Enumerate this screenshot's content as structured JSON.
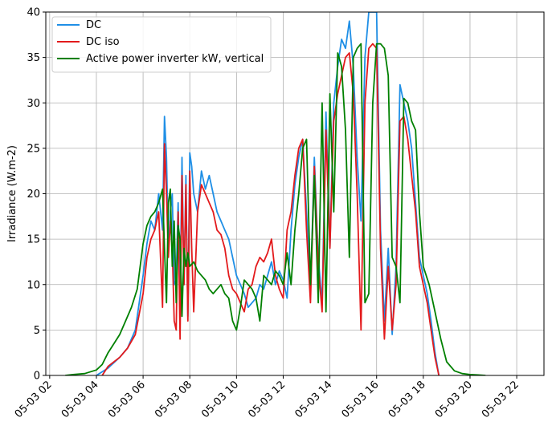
{
  "chart_data": {
    "type": "line",
    "title": "",
    "xlabel": "",
    "ylabel": "Irradiance (W.m-2)",
    "ylim": [
      0,
      40
    ],
    "xlim": [
      "05-03 01:50",
      "05-03 23:10"
    ],
    "grid": true,
    "legend_position": "top-left",
    "xaxis_type": "datetime",
    "x_ticks": [
      "05-03 02",
      "05-03 04",
      "05-03 06",
      "05-03 08",
      "05-03 10",
      "05-03 12",
      "05-03 14",
      "05-03 16",
      "05-03 18",
      "05-03 20",
      "05-03 22"
    ],
    "y_ticks": [
      0,
      5,
      10,
      15,
      20,
      25,
      30,
      35,
      40
    ],
    "series": [
      {
        "name": "DC",
        "color": "#1f8fe6",
        "x": [
          "05-03 04:00",
          "05-03 04:30",
          "05-03 05:00",
          "05-03 05:20",
          "05-03 05:40",
          "05-03 06:00",
          "05-03 06:10",
          "05-03 06:20",
          "05-03 06:30",
          "05-03 06:40",
          "05-03 06:50",
          "05-03 06:55",
          "05-03 07:00",
          "05-03 07:05",
          "05-03 07:10",
          "05-03 07:15",
          "05-03 07:20",
          "05-03 07:25",
          "05-03 07:30",
          "05-03 07:35",
          "05-03 07:40",
          "05-03 07:45",
          "05-03 07:50",
          "05-03 07:55",
          "05-03 08:00",
          "05-03 08:05",
          "05-03 08:10",
          "05-03 08:20",
          "05-03 08:30",
          "05-03 08:40",
          "05-03 08:50",
          "05-03 09:00",
          "05-03 09:10",
          "05-03 09:20",
          "05-03 09:30",
          "05-03 09:40",
          "05-03 09:50",
          "05-03 10:00",
          "05-03 10:10",
          "05-03 10:20",
          "05-03 10:30",
          "05-03 10:40",
          "05-03 10:50",
          "05-03 11:00",
          "05-03 11:10",
          "05-03 11:20",
          "05-03 11:30",
          "05-03 11:40",
          "05-03 11:50",
          "05-03 12:00",
          "05-03 12:10",
          "05-03 12:20",
          "05-03 12:30",
          "05-03 12:40",
          "05-03 12:50",
          "05-03 13:00",
          "05-03 13:10",
          "05-03 13:20",
          "05-03 13:30",
          "05-03 13:40",
          "05-03 13:50",
          "05-03 14:00",
          "05-03 14:10",
          "05-03 14:20",
          "05-03 14:30",
          "05-03 14:40",
          "05-03 14:50",
          "05-03 15:00",
          "05-03 15:10",
          "05-03 15:20",
          "05-03 15:30",
          "05-03 15:40",
          "05-03 15:50",
          "05-03 16:00",
          "05-03 16:10",
          "05-03 16:20",
          "05-03 16:30",
          "05-03 16:40",
          "05-03 16:50",
          "05-03 17:00",
          "05-03 17:10",
          "05-03 17:20",
          "05-03 17:30",
          "05-03 17:40",
          "05-03 17:50",
          "05-03 18:00",
          "05-03 18:10",
          "05-03 18:20",
          "05-03 18:30",
          "05-03 18:40"
        ],
        "y": [
          0,
          0.8,
          2.0,
          3.0,
          5.0,
          11.0,
          14.5,
          17.0,
          16.0,
          20.0,
          16.0,
          28.5,
          24.0,
          14.0,
          18.0,
          20.0,
          10.0,
          10.5,
          19.0,
          8.0,
          24.0,
          10.0,
          22.0,
          6.5,
          24.5,
          23.0,
          20.0,
          18.0,
          22.5,
          20.5,
          22.0,
          20.0,
          18.0,
          17.0,
          16.0,
          15.0,
          13.0,
          11.0,
          10.0,
          9.0,
          7.5,
          8.0,
          8.5,
          10.0,
          9.5,
          11.0,
          12.5,
          10.0,
          11.5,
          10.5,
          8.5,
          16.0,
          21.0,
          24.0,
          26.0,
          18.0,
          9.0,
          24.0,
          13.0,
          8.0,
          29.0,
          14.0,
          30.0,
          34.0,
          37.0,
          36.0,
          39.0,
          34.0,
          24.0,
          17.0,
          35.0,
          40.0,
          40.0,
          40.0,
          16.0,
          6.0,
          14.0,
          4.5,
          12.0,
          32.0,
          30.0,
          28.0,
          25.0,
          19.0,
          13.0,
          11.0,
          9.0,
          6.0,
          2.5,
          0
        ]
      },
      {
        "name": "DC iso",
        "color": "#e31a1c",
        "x": [
          "05-03 04:15",
          "05-03 04:30",
          "05-03 05:00",
          "05-03 05:20",
          "05-03 05:40",
          "05-03 06:00",
          "05-03 06:10",
          "05-03 06:20",
          "05-03 06:30",
          "05-03 06:40",
          "05-03 06:50",
          "05-03 06:55",
          "05-03 07:00",
          "05-03 07:05",
          "05-03 07:10",
          "05-03 07:15",
          "05-03 07:20",
          "05-03 07:25",
          "05-03 07:30",
          "05-03 07:35",
          "05-03 07:40",
          "05-03 07:45",
          "05-03 07:50",
          "05-03 07:55",
          "05-03 08:00",
          "05-03 08:05",
          "05-03 08:10",
          "05-03 08:20",
          "05-03 08:30",
          "05-03 08:40",
          "05-03 08:50",
          "05-03 09:00",
          "05-03 09:10",
          "05-03 09:20",
          "05-03 09:30",
          "05-03 09:40",
          "05-03 09:50",
          "05-03 10:00",
          "05-03 10:10",
          "05-03 10:20",
          "05-03 10:30",
          "05-03 10:40",
          "05-03 10:50",
          "05-03 11:00",
          "05-03 11:10",
          "05-03 11:20",
          "05-03 11:30",
          "05-03 11:40",
          "05-03 11:50",
          "05-03 12:00",
          "05-03 12:10",
          "05-03 12:20",
          "05-03 12:30",
          "05-03 12:40",
          "05-03 12:50",
          "05-03 13:00",
          "05-03 13:10",
          "05-03 13:20",
          "05-03 13:30",
          "05-03 13:40",
          "05-03 13:50",
          "05-03 14:00",
          "05-03 14:10",
          "05-03 14:20",
          "05-03 14:30",
          "05-03 14:40",
          "05-03 14:50",
          "05-03 15:00",
          "05-03 15:10",
          "05-03 15:20",
          "05-03 15:30",
          "05-03 15:40",
          "05-03 15:50",
          "05-03 16:00",
          "05-03 16:10",
          "05-03 16:20",
          "05-03 16:30",
          "05-03 16:40",
          "05-03 16:50",
          "05-03 17:00",
          "05-03 17:10",
          "05-03 17:20",
          "05-03 17:30",
          "05-03 17:40",
          "05-03 17:50",
          "05-03 18:00",
          "05-03 18:10",
          "05-03 18:20",
          "05-03 18:30",
          "05-03 18:40"
        ],
        "y": [
          0,
          1.0,
          2.0,
          3.0,
          4.5,
          9.0,
          13.0,
          15.0,
          16.0,
          18.0,
          7.5,
          25.5,
          20.0,
          13.0,
          17.0,
          14.0,
          6.0,
          5.0,
          18.0,
          4.0,
          22.0,
          10.0,
          21.0,
          6.0,
          22.5,
          14.0,
          7.0,
          18.0,
          21.0,
          20.0,
          19.0,
          18.0,
          16.0,
          15.5,
          14.0,
          11.0,
          9.5,
          9.0,
          8.0,
          7.0,
          9.5,
          10.0,
          12.0,
          13.0,
          12.5,
          13.5,
          15.0,
          11.0,
          9.5,
          8.5,
          16.0,
          18.0,
          22.0,
          25.0,
          26.0,
          16.0,
          8.0,
          23.0,
          12.0,
          7.0,
          27.0,
          14.0,
          28.0,
          31.0,
          33.0,
          35.0,
          35.5,
          31.0,
          20.0,
          5.0,
          30.0,
          36.0,
          36.5,
          36.0,
          14.0,
          4.0,
          12.0,
          5.0,
          10.0,
          28.0,
          28.5,
          26.0,
          22.0,
          18.0,
          12.0,
          10.0,
          8.0,
          5.0,
          2.0,
          0
        ]
      },
      {
        "name": "Active power inverter kW, vertical",
        "color": "#008000",
        "x": [
          "05-03 02:40",
          "05-03 03:00",
          "05-03 03:30",
          "05-03 04:00",
          "05-03 04:15",
          "05-03 04:30",
          "05-03 04:45",
          "05-03 05:00",
          "05-03 05:15",
          "05-03 05:30",
          "05-03 05:45",
          "05-03 06:00",
          "05-03 06:10",
          "05-03 06:20",
          "05-03 06:30",
          "05-03 06:40",
          "05-03 06:50",
          "05-03 06:55",
          "05-03 07:00",
          "05-03 07:05",
          "05-03 07:10",
          "05-03 07:15",
          "05-03 07:20",
          "05-03 07:25",
          "05-03 07:30",
          "05-03 07:35",
          "05-03 07:40",
          "05-03 07:45",
          "05-03 07:50",
          "05-03 07:55",
          "05-03 08:00",
          "05-03 08:10",
          "05-03 08:20",
          "05-03 08:30",
          "05-03 08:40",
          "05-03 08:50",
          "05-03 09:00",
          "05-03 09:10",
          "05-03 09:20",
          "05-03 09:30",
          "05-03 09:40",
          "05-03 09:50",
          "05-03 10:00",
          "05-03 10:10",
          "05-03 10:20",
          "05-03 10:30",
          "05-03 10:40",
          "05-03 10:50",
          "05-03 11:00",
          "05-03 11:10",
          "05-03 11:20",
          "05-03 11:30",
          "05-03 11:40",
          "05-03 11:50",
          "05-03 12:00",
          "05-03 12:10",
          "05-03 12:20",
          "05-03 12:30",
          "05-03 12:40",
          "05-03 12:50",
          "05-03 13:00",
          "05-03 13:10",
          "05-03 13:20",
          "05-03 13:30",
          "05-03 13:40",
          "05-03 13:50",
          "05-03 14:00",
          "05-03 14:10",
          "05-03 14:20",
          "05-03 14:30",
          "05-03 14:40",
          "05-03 14:50",
          "05-03 15:00",
          "05-03 15:10",
          "05-03 15:20",
          "05-03 15:30",
          "05-03 15:40",
          "05-03 15:50",
          "05-03 16:00",
          "05-03 16:10",
          "05-03 16:20",
          "05-03 16:30",
          "05-03 16:40",
          "05-03 16:50",
          "05-03 17:00",
          "05-03 17:10",
          "05-03 17:20",
          "05-03 17:30",
          "05-03 17:40",
          "05-03 17:50",
          "05-03 18:00",
          "05-03 18:15",
          "05-03 18:30",
          "05-03 18:45",
          "05-03 19:00",
          "05-03 19:20",
          "05-03 19:40",
          "05-03 20:00",
          "05-03 20:20",
          "05-03 20:40"
        ],
        "y": [
          0,
          0.1,
          0.2,
          0.6,
          1.2,
          2.5,
          3.5,
          4.5,
          6.0,
          7.5,
          9.5,
          14.5,
          16.5,
          17.5,
          18.0,
          19.0,
          20.5,
          14.0,
          8.0,
          19.0,
          20.5,
          12.0,
          17.0,
          8.0,
          16.5,
          15.0,
          6.5,
          14.0,
          12.0,
          13.5,
          12.0,
          12.5,
          11.5,
          11.0,
          10.5,
          9.5,
          9.0,
          9.5,
          10.0,
          9.0,
          8.5,
          6.0,
          5.0,
          7.5,
          10.5,
          10.0,
          9.5,
          8.5,
          6.0,
          11.0,
          10.5,
          10.0,
          11.5,
          11.0,
          10.0,
          13.5,
          10.0,
          16.0,
          20.0,
          25.0,
          26.0,
          10.0,
          22.0,
          8.0,
          30.0,
          7.0,
          31.0,
          18.0,
          35.5,
          34.0,
          27.0,
          13.0,
          35.0,
          36.0,
          36.5,
          8.0,
          9.0,
          30.0,
          36.5,
          36.5,
          36.0,
          33.0,
          13.0,
          12.0,
          8.0,
          30.5,
          30.0,
          28.0,
          27.0,
          18.0,
          12.0,
          10.0,
          7.0,
          4.0,
          1.5,
          0.5,
          0.2,
          0.1,
          0.05,
          0.0
        ]
      }
    ]
  }
}
